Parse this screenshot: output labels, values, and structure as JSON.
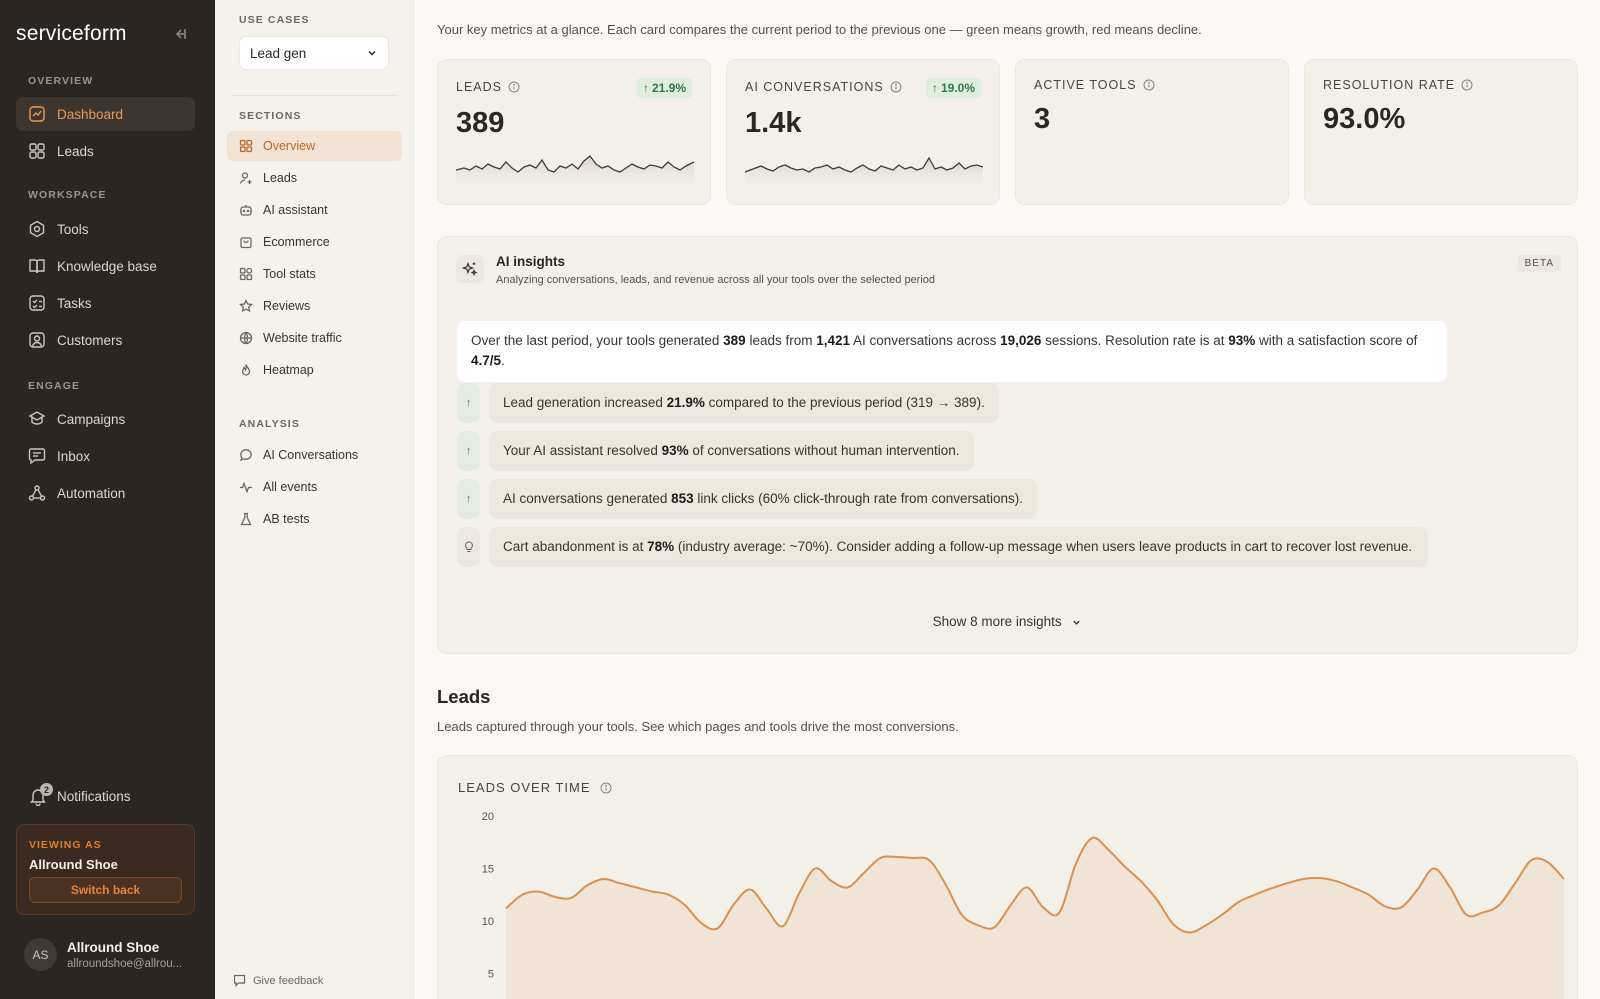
{
  "sidebar": {
    "logo": "serviceform",
    "sections": {
      "overview": "OVERVIEW",
      "workspace": "WORKSPACE",
      "engage": "ENGAGE"
    },
    "items": {
      "dashboard": "Dashboard",
      "leads": "Leads",
      "tools": "Tools",
      "knowledge_base": "Knowledge base",
      "tasks": "Tasks",
      "customers": "Customers",
      "campaigns": "Campaigns",
      "inbox": "Inbox",
      "automation": "Automation"
    },
    "notifications": {
      "label": "Notifications",
      "count": "2"
    },
    "viewing_as": {
      "label": "VIEWING AS",
      "name": "Allround Shoe",
      "button": "Switch back"
    },
    "user": {
      "initials": "AS",
      "name": "Allround Shoe",
      "email": "allroundshoe@allrou..."
    }
  },
  "subnav": {
    "use_cases_label": "USE CASES",
    "use_case_value": "Lead gen",
    "sections_label": "SECTIONS",
    "sections": [
      "Overview",
      "Leads",
      "AI assistant",
      "Ecommerce",
      "Tool stats",
      "Reviews",
      "Website traffic",
      "Heatmap"
    ],
    "analysis_label": "ANALYSIS",
    "analysis": [
      "AI Conversations",
      "All events",
      "AB tests"
    ],
    "feedback": "Give feedback"
  },
  "main": {
    "intro": "Your key metrics at a glance. Each card compares the current period to the previous one — green means growth, red means decline.",
    "cards": [
      {
        "label": "LEADS",
        "value": "389",
        "delta": "21.9%"
      },
      {
        "label": "AI CONVERSATIONS",
        "value": "1.4k",
        "delta": "19.0%"
      },
      {
        "label": "ACTIVE TOOLS",
        "value": "3"
      },
      {
        "label": "RESOLUTION RATE",
        "value": "93.0%"
      }
    ],
    "insights": {
      "title": "AI insights",
      "subtitle": "Analyzing conversations, leads, and revenue across all your tools over the selected period",
      "badge": "BETA",
      "summary": {
        "p1": "Over the last period, your tools generated ",
        "leads": "389",
        "p2": " leads from ",
        "conversations": "1,421",
        "p3": " AI conversations across ",
        "sessions": "19,026",
        "p4": " sessions. Resolution rate is at ",
        "rate": "93%",
        "p5": " with a satisfaction score of ",
        "score": "4.7/5",
        "p6": "."
      },
      "items": [
        {
          "pre": "Lead generation increased ",
          "bold": "21.9%",
          "post": " compared to the previous period (319 → 389)."
        },
        {
          "pre": "Your AI assistant resolved ",
          "bold": "93%",
          "post": " of conversations without human intervention."
        },
        {
          "pre": "AI conversations generated ",
          "bold": "853",
          "post": " link clicks (60% click-through rate from conversations)."
        },
        {
          "pre": "Cart abandonment is at ",
          "bold": "78%",
          "post": " (industry average: ~70%). Consider adding a follow-up message when users leave products in cart to recover lost revenue."
        }
      ],
      "show_more": "Show 8 more insights"
    },
    "leads_section": {
      "title": "Leads",
      "subtitle": "Leads captured through your tools. See which pages and tools drive the most conversions."
    }
  },
  "colors": {
    "accent": "#e79a54",
    "line": "#d9914f",
    "growth": "#2f7a4b"
  },
  "chart_data": {
    "type": "line",
    "title": "LEADS OVER TIME",
    "xlabel": "",
    "ylabel": "",
    "yticks": [
      20,
      15,
      10,
      5
    ],
    "ylim": [
      3,
      20
    ],
    "grid": false,
    "series": [
      {
        "values": [
          11.2,
          12.5,
          12.8,
          12.3,
          12.2,
          13.4,
          14.0,
          13.6,
          13.2,
          12.8,
          12.5,
          11.5,
          9.8,
          9.3,
          11.6,
          13.0,
          11.2,
          9.5,
          12.6,
          15.0,
          13.8,
          13.2,
          14.6,
          16.0,
          16.1,
          16.0,
          15.8,
          13.5,
          10.6,
          9.6,
          9.4,
          11.5,
          13.2,
          11.3,
          10.8,
          15.4,
          17.9,
          16.8,
          15.2,
          13.8,
          12.0,
          9.7,
          8.9,
          9.6,
          10.6,
          11.8,
          12.5,
          13.1,
          13.6,
          14.0,
          14.1,
          13.8,
          13.2,
          12.5,
          11.4,
          11.3,
          13.0,
          15.0,
          13.2,
          10.6,
          10.8,
          11.5,
          13.6,
          15.8,
          15.6,
          14.0
        ]
      }
    ]
  }
}
